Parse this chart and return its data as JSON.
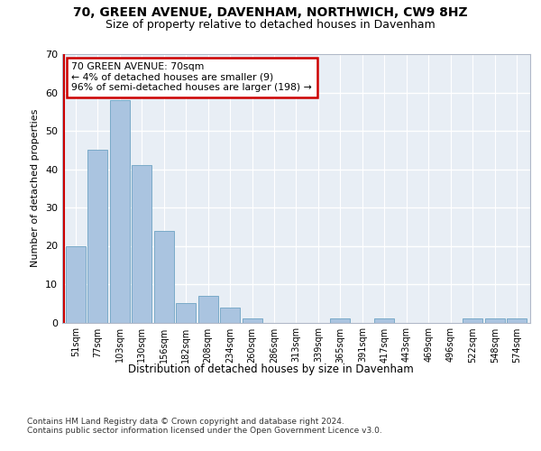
{
  "title": "70, GREEN AVENUE, DAVENHAM, NORTHWICH, CW9 8HZ",
  "subtitle": "Size of property relative to detached houses in Davenham",
  "xlabel": "Distribution of detached houses by size in Davenham",
  "ylabel": "Number of detached properties",
  "categories": [
    "51sqm",
    "77sqm",
    "103sqm",
    "130sqm",
    "156sqm",
    "182sqm",
    "208sqm",
    "234sqm",
    "260sqm",
    "286sqm",
    "313sqm",
    "339sqm",
    "365sqm",
    "391sqm",
    "417sqm",
    "443sqm",
    "469sqm",
    "496sqm",
    "522sqm",
    "548sqm",
    "574sqm"
  ],
  "values": [
    20,
    45,
    58,
    41,
    24,
    5,
    7,
    4,
    1,
    0,
    0,
    0,
    1,
    0,
    1,
    0,
    0,
    0,
    1,
    1,
    1
  ],
  "bar_color": "#aac4e0",
  "bar_edge_color": "#7aaac8",
  "vline_x": -0.5,
  "vline_color": "#cc0000",
  "annotation_text": "70 GREEN AVENUE: 70sqm\n← 4% of detached houses are smaller (9)\n96% of semi-detached houses are larger (198) →",
  "annotation_box_color": "#ffffff",
  "annotation_box_edge_color": "#cc0000",
  "ylim": [
    0,
    70
  ],
  "yticks": [
    0,
    10,
    20,
    30,
    40,
    50,
    60,
    70
  ],
  "bg_color": "#e8eef5",
  "grid_color": "#ffffff",
  "footer": "Contains HM Land Registry data © Crown copyright and database right 2024.\nContains public sector information licensed under the Open Government Licence v3.0."
}
